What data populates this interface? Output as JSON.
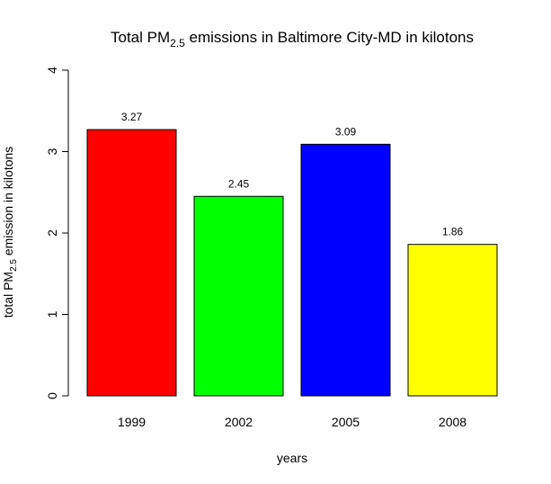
{
  "chart_data": {
    "type": "bar",
    "title": {
      "pre": "Total PM",
      "sub": "2.5",
      "post": " emissions in Baltimore City-MD in kilotons"
    },
    "xlabel": "years",
    "ylabel": {
      "pre": "total PM",
      "sub": "2.5",
      "post": " emission in kilotons"
    },
    "categories": [
      "1999",
      "2002",
      "2005",
      "2008"
    ],
    "values": [
      3.27,
      2.45,
      3.09,
      1.86
    ],
    "data_labels": [
      "3.27",
      "2.45",
      "3.09",
      "1.86"
    ],
    "colors": [
      "#ff0000",
      "#00ff00",
      "#0000ff",
      "#ffff00"
    ],
    "ylim": [
      0,
      4
    ],
    "yticks": [
      "0",
      "1",
      "2",
      "3",
      "4"
    ],
    "grid": false,
    "legend": "none"
  }
}
